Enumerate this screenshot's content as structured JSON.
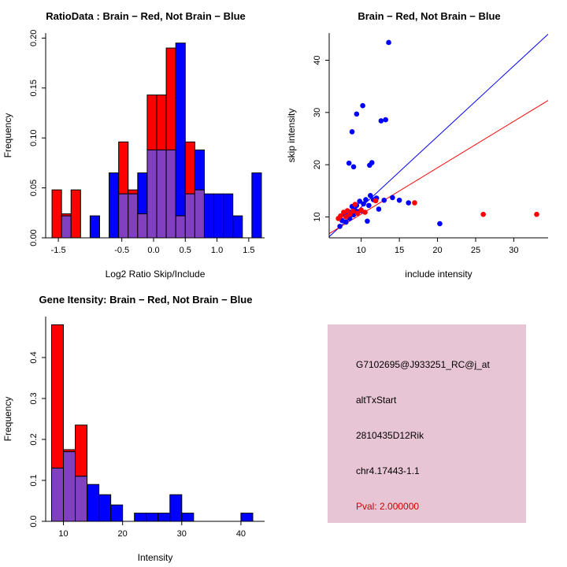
{
  "colors": {
    "red": "#FF0000",
    "blue": "#0000FF",
    "overlap": "#8040BF",
    "axis": "#000000",
    "info_box_bg": "#E8C5D4",
    "pval_red": "#CC0000"
  },
  "info_box": {
    "lines": [
      "G7102695@J933251_RC@j_at",
      "altTxStart",
      "2810435D12Rik",
      "chr4.17443-1.1"
    ],
    "pval": "Pval: 2.000000",
    "bg": "#E8C5D4",
    "pval_color": "#CC0000"
  },
  "chart_data": [
    {
      "type": "bar",
      "title": "RatioData : Brain − Red, Not Brain − Blue",
      "xlabel": "Log2 Ratio Skip/Include",
      "ylabel": "Frequency",
      "xlim": [
        -1.7,
        1.75
      ],
      "ylim": [
        0,
        0.205
      ],
      "grid": false,
      "bin_width": 0.15,
      "bins": [
        -1.6,
        -1.45,
        -1.3,
        -1.15,
        -1.0,
        -0.85,
        -0.7,
        -0.55,
        -0.4,
        -0.25,
        -0.1,
        0.05,
        0.2,
        0.35,
        0.5,
        0.65,
        0.8,
        0.95,
        1.1,
        1.25,
        1.4,
        1.55
      ],
      "series": [
        {
          "name": "Brain",
          "color": "red",
          "values": [
            0.048,
            0.024,
            0.048,
            0,
            0,
            0,
            0,
            0.096,
            0.048,
            0.024,
            0.143,
            0.143,
            0.19,
            0.022,
            0.096,
            0.048,
            0,
            0,
            0,
            0,
            0,
            0
          ]
        },
        {
          "name": "Not Brain",
          "color": "blue",
          "values": [
            0,
            0.022,
            0,
            0,
            0.022,
            0,
            0.065,
            0.044,
            0.044,
            0.065,
            0.088,
            0.088,
            0.088,
            0.195,
            0.044,
            0.088,
            0.044,
            0.044,
            0.044,
            0.022,
            0,
            0.065
          ]
        }
      ],
      "xticks": [
        {
          "v": -1.5,
          "label": "-1.5"
        },
        {
          "v": -0.5,
          "label": "-0.5"
        },
        {
          "v": 0.0,
          "label": "0.0"
        },
        {
          "v": 0.5,
          "label": "0.5"
        },
        {
          "v": 1.0,
          "label": "1.0"
        },
        {
          "v": 1.5,
          "label": "1.5"
        }
      ],
      "yticks": [
        {
          "v": 0,
          "label": "0.00"
        },
        {
          "v": 0.05,
          "label": "0.05"
        },
        {
          "v": 0.1,
          "label": "0.10"
        },
        {
          "v": 0.15,
          "label": "0.15"
        },
        {
          "v": 0.2,
          "label": "0.20"
        }
      ]
    },
    {
      "type": "scatter",
      "title": "Brain − Red, Not Brain − Blue",
      "xlabel": "include intensity",
      "ylabel": "skip intensity",
      "xlim": [
        5.8,
        34.5
      ],
      "ylim": [
        6,
        45.2
      ],
      "grid": false,
      "xticks": [
        {
          "v": 10,
          "label": "10"
        },
        {
          "v": 15,
          "label": "15"
        },
        {
          "v": 20,
          "label": "20"
        },
        {
          "v": 25,
          "label": "25"
        },
        {
          "v": 30,
          "label": "30"
        }
      ],
      "yticks": [
        {
          "v": 10,
          "label": "10"
        },
        {
          "v": 20,
          "label": "20"
        },
        {
          "v": 30,
          "label": "30"
        },
        {
          "v": 40,
          "label": "40"
        }
      ],
      "lines": [
        {
          "color": "blue",
          "x": [
            5.8,
            34.5
          ],
          "y": [
            6.2,
            45.0
          ]
        },
        {
          "color": "red",
          "x": [
            5.8,
            34.5
          ],
          "y": [
            6.8,
            32.3
          ]
        }
      ],
      "series": [
        {
          "name": "Not Brain",
          "color": "blue",
          "points": [
            [
              7.2,
              8.2
            ],
            [
              7.5,
              9.3
            ],
            [
              7.7,
              10.6
            ],
            [
              8.0,
              9.0
            ],
            [
              8.1,
              10.1
            ],
            [
              8.3,
              11.0
            ],
            [
              8.5,
              9.7
            ],
            [
              8.6,
              10.9
            ],
            [
              8.8,
              12.0
            ],
            [
              9.0,
              10.4
            ],
            [
              9.2,
              11.3
            ],
            [
              9.4,
              12.2
            ],
            [
              9.6,
              11.0
            ],
            [
              9.8,
              13.0
            ],
            [
              10.0,
              11.2
            ],
            [
              10.3,
              12.5
            ],
            [
              10.6,
              13.3
            ],
            [
              10.8,
              9.2
            ],
            [
              11.0,
              12.2
            ],
            [
              11.2,
              14.1
            ],
            [
              11.6,
              13.3
            ],
            [
              12.0,
              13.6
            ],
            [
              12.3,
              11.5
            ],
            [
              13.0,
              13.2
            ],
            [
              14.1,
              13.7
            ],
            [
              15.0,
              13.2
            ],
            [
              8.4,
              20.3
            ],
            [
              9.0,
              19.6
            ],
            [
              8.8,
              26.3
            ],
            [
              9.4,
              29.7
            ],
            [
              10.2,
              31.3
            ],
            [
              11.1,
              19.9
            ],
            [
              11.4,
              20.4
            ],
            [
              12.6,
              28.4
            ],
            [
              13.2,
              28.6
            ],
            [
              13.6,
              43.4
            ],
            [
              16.2,
              12.7
            ],
            [
              20.3,
              8.7
            ]
          ]
        },
        {
          "name": "Brain",
          "color": "red",
          "points": [
            [
              7.0,
              9.7
            ],
            [
              7.3,
              10.2
            ],
            [
              7.7,
              10.9
            ],
            [
              8.0,
              10.0
            ],
            [
              8.2,
              11.2
            ],
            [
              8.5,
              10.5
            ],
            [
              8.9,
              11.1
            ],
            [
              9.2,
              12.4
            ],
            [
              9.5,
              10.7
            ],
            [
              10.0,
              11.3
            ],
            [
              10.5,
              10.9
            ],
            [
              11.9,
              13.1
            ],
            [
              17.0,
              12.7
            ],
            [
              26.0,
              10.5
            ],
            [
              33.0,
              10.5
            ]
          ]
        }
      ]
    },
    {
      "type": "bar",
      "title": "Gene Itensity: Brain − Red, Not Brain − Blue",
      "xlabel": "Intensity",
      "ylabel": "Frequency",
      "xlim": [
        7,
        44
      ],
      "ylim": [
        0,
        0.5
      ],
      "grid": false,
      "bin_width": 2,
      "bins": [
        8,
        10,
        12,
        14,
        16,
        18,
        20,
        22,
        24,
        26,
        28,
        30,
        32,
        34,
        36,
        38,
        40
      ],
      "series": [
        {
          "name": "Brain",
          "color": "red",
          "values": [
            0.48,
            0.175,
            0.235,
            0,
            0,
            0,
            0,
            0,
            0,
            0,
            0,
            0,
            0,
            0,
            0,
            0,
            0
          ]
        },
        {
          "name": "Not Brain",
          "color": "blue",
          "values": [
            0.13,
            0.17,
            0.11,
            0.09,
            0.065,
            0.04,
            0,
            0.02,
            0.02,
            0.02,
            0.065,
            0.02,
            0,
            0,
            0,
            0,
            0.02
          ]
        }
      ],
      "xticks": [
        {
          "v": 10,
          "label": "10"
        },
        {
          "v": 20,
          "label": "20"
        },
        {
          "v": 30,
          "label": "30"
        },
        {
          "v": 40,
          "label": "40"
        }
      ],
      "yticks": [
        {
          "v": 0,
          "label": "0.0"
        },
        {
          "v": 0.1,
          "label": "0.1"
        },
        {
          "v": 0.2,
          "label": "0.2"
        },
        {
          "v": 0.3,
          "label": "0.3"
        },
        {
          "v": 0.4,
          "label": "0.4"
        }
      ]
    }
  ]
}
